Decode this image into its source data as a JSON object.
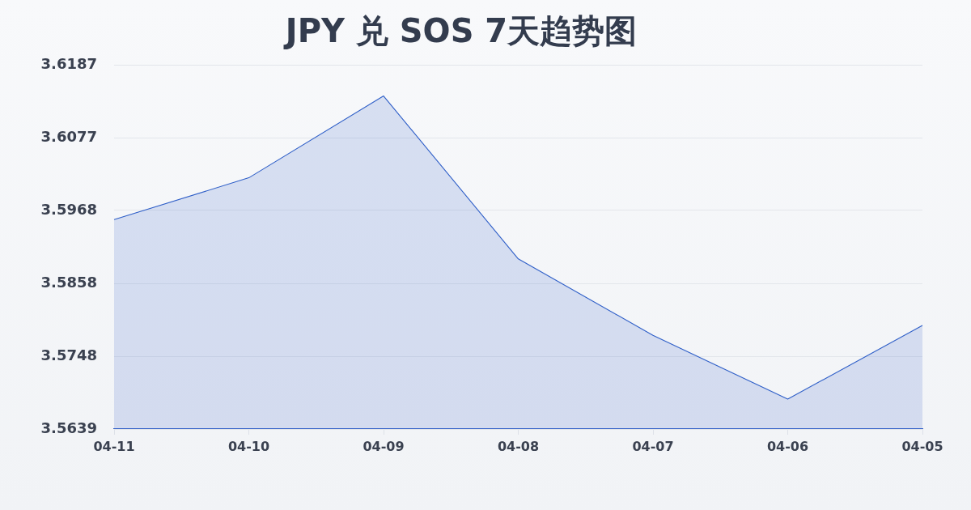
{
  "chart_data": {
    "type": "area",
    "title": "JPY 兑 SOS 7天趋势图",
    "categories": [
      "04-11",
      "04-10",
      "04-09",
      "04-08",
      "04-07",
      "04-06",
      "04-05"
    ],
    "values": [
      3.5954,
      3.6017,
      3.614,
      3.5895,
      3.578,
      3.5684,
      3.5795
    ],
    "color": "#2f5fc8",
    "ylim": [
      3.5639,
      3.6187
    ],
    "yticks": [
      3.5639,
      3.5748,
      3.5858,
      3.5968,
      3.6077,
      3.6187
    ],
    "grid": "y",
    "marker": "none",
    "line_style": "solid",
    "legend": false
  }
}
